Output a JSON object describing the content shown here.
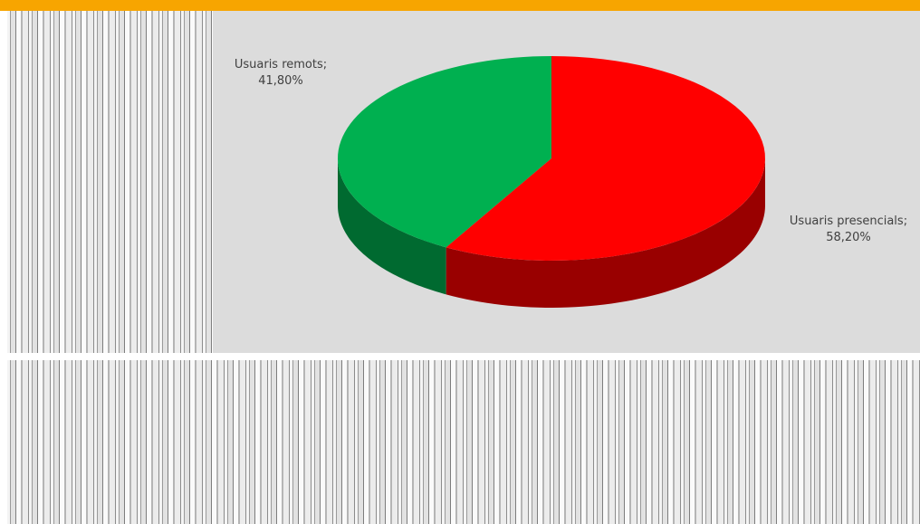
{
  "chart_data": {
    "type": "pie",
    "categories": [
      "Usuaris remots;",
      "Usuaris presencials;"
    ],
    "values": [
      41.8,
      58.2
    ],
    "value_labels": [
      "41,80%",
      "58,20%"
    ],
    "colors": [
      "#00b050",
      "#ff0000"
    ]
  }
}
